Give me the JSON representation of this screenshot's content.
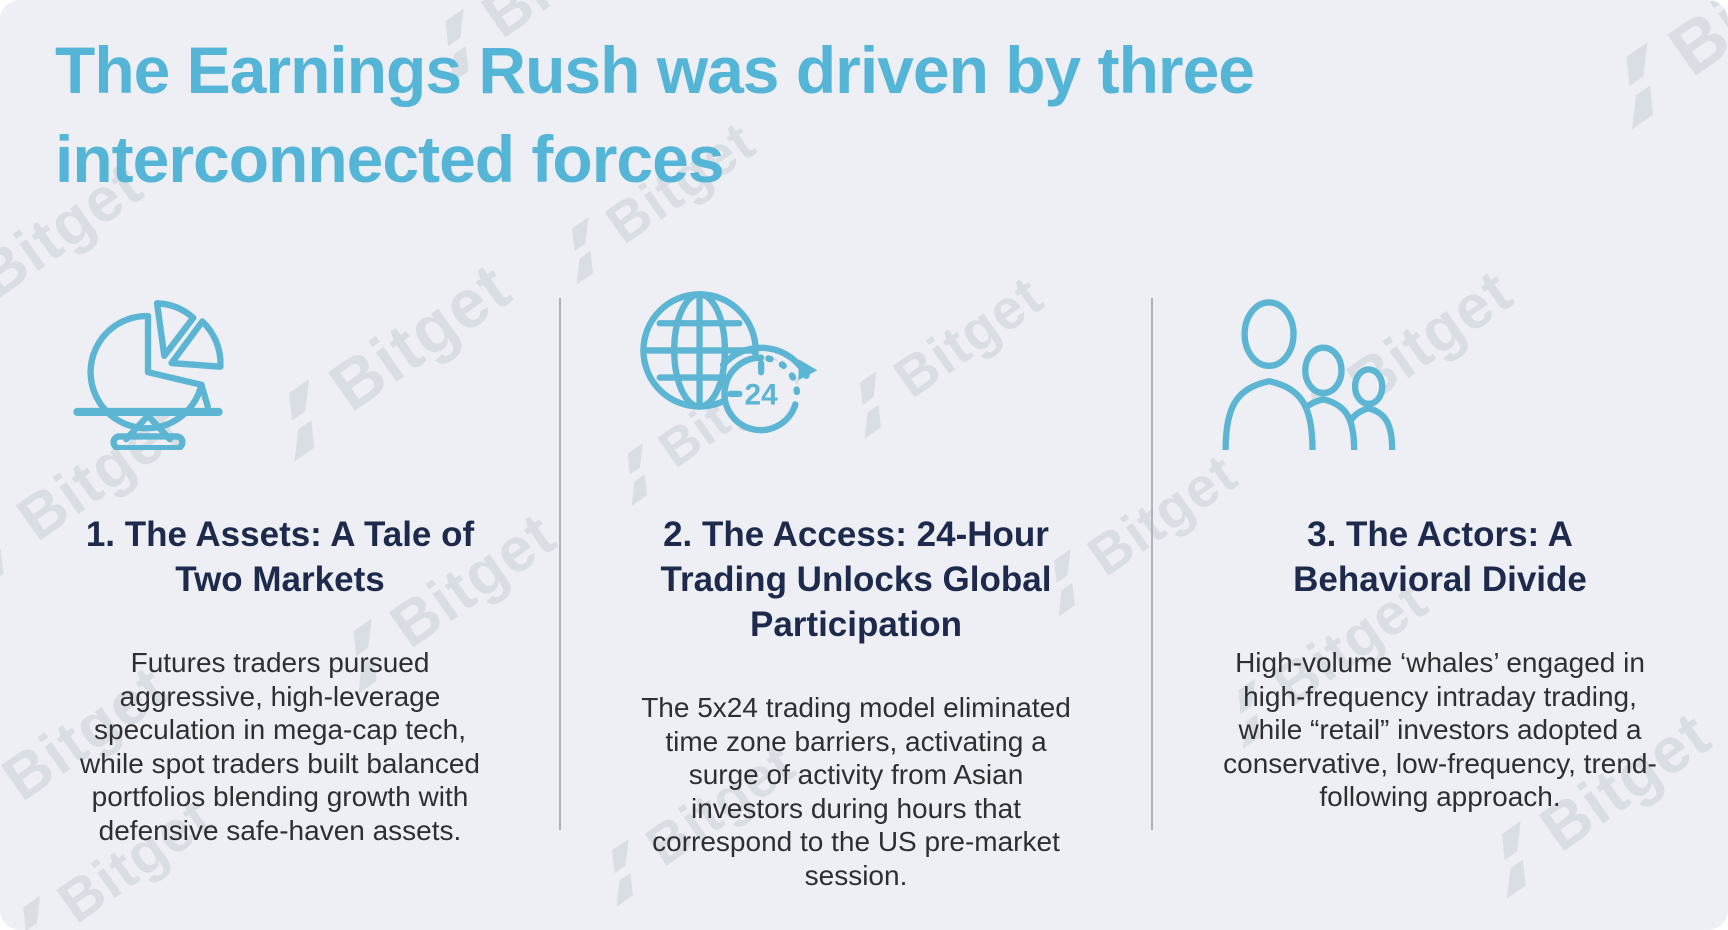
{
  "title": "The Earnings Rush was driven by three interconnected forces",
  "watermark": {
    "text": "Bitget"
  },
  "columns": [
    {
      "icon": "pie-chart-balance-icon",
      "heading": "1. The Assets: A Tale of Two Markets",
      "body": "Futures traders pursued aggressive, high-leverage speculation in mega-cap tech, while spot traders built balanced portfolios blending growth with defensive safe-haven assets."
    },
    {
      "icon": "globe-24-hour-icon",
      "clock_label": "24",
      "heading": "2. The Access: 24-Hour Trading Unlocks Global Participation",
      "body": "The 5x24 trading model eliminated time zone barriers, activating a surge of activity from Asian investors during hours that correspond to the US pre-market session."
    },
    {
      "icon": "people-group-icon",
      "heading": "3. The Actors: A Behavioral Divide",
      "body": "High-volume ‘whales’ engaged in high-frequency intraday trading, while “retail” investors adopted a conservative, low-frequency, trend-following approach."
    }
  ],
  "colors": {
    "background": "#edeff4",
    "title_blue": "#55b5d6",
    "heading_navy": "#1e2a4b",
    "body_text": "#2e2f33",
    "icon_stroke": "#5bb5d3",
    "divider_gray": "#adb2bb"
  }
}
